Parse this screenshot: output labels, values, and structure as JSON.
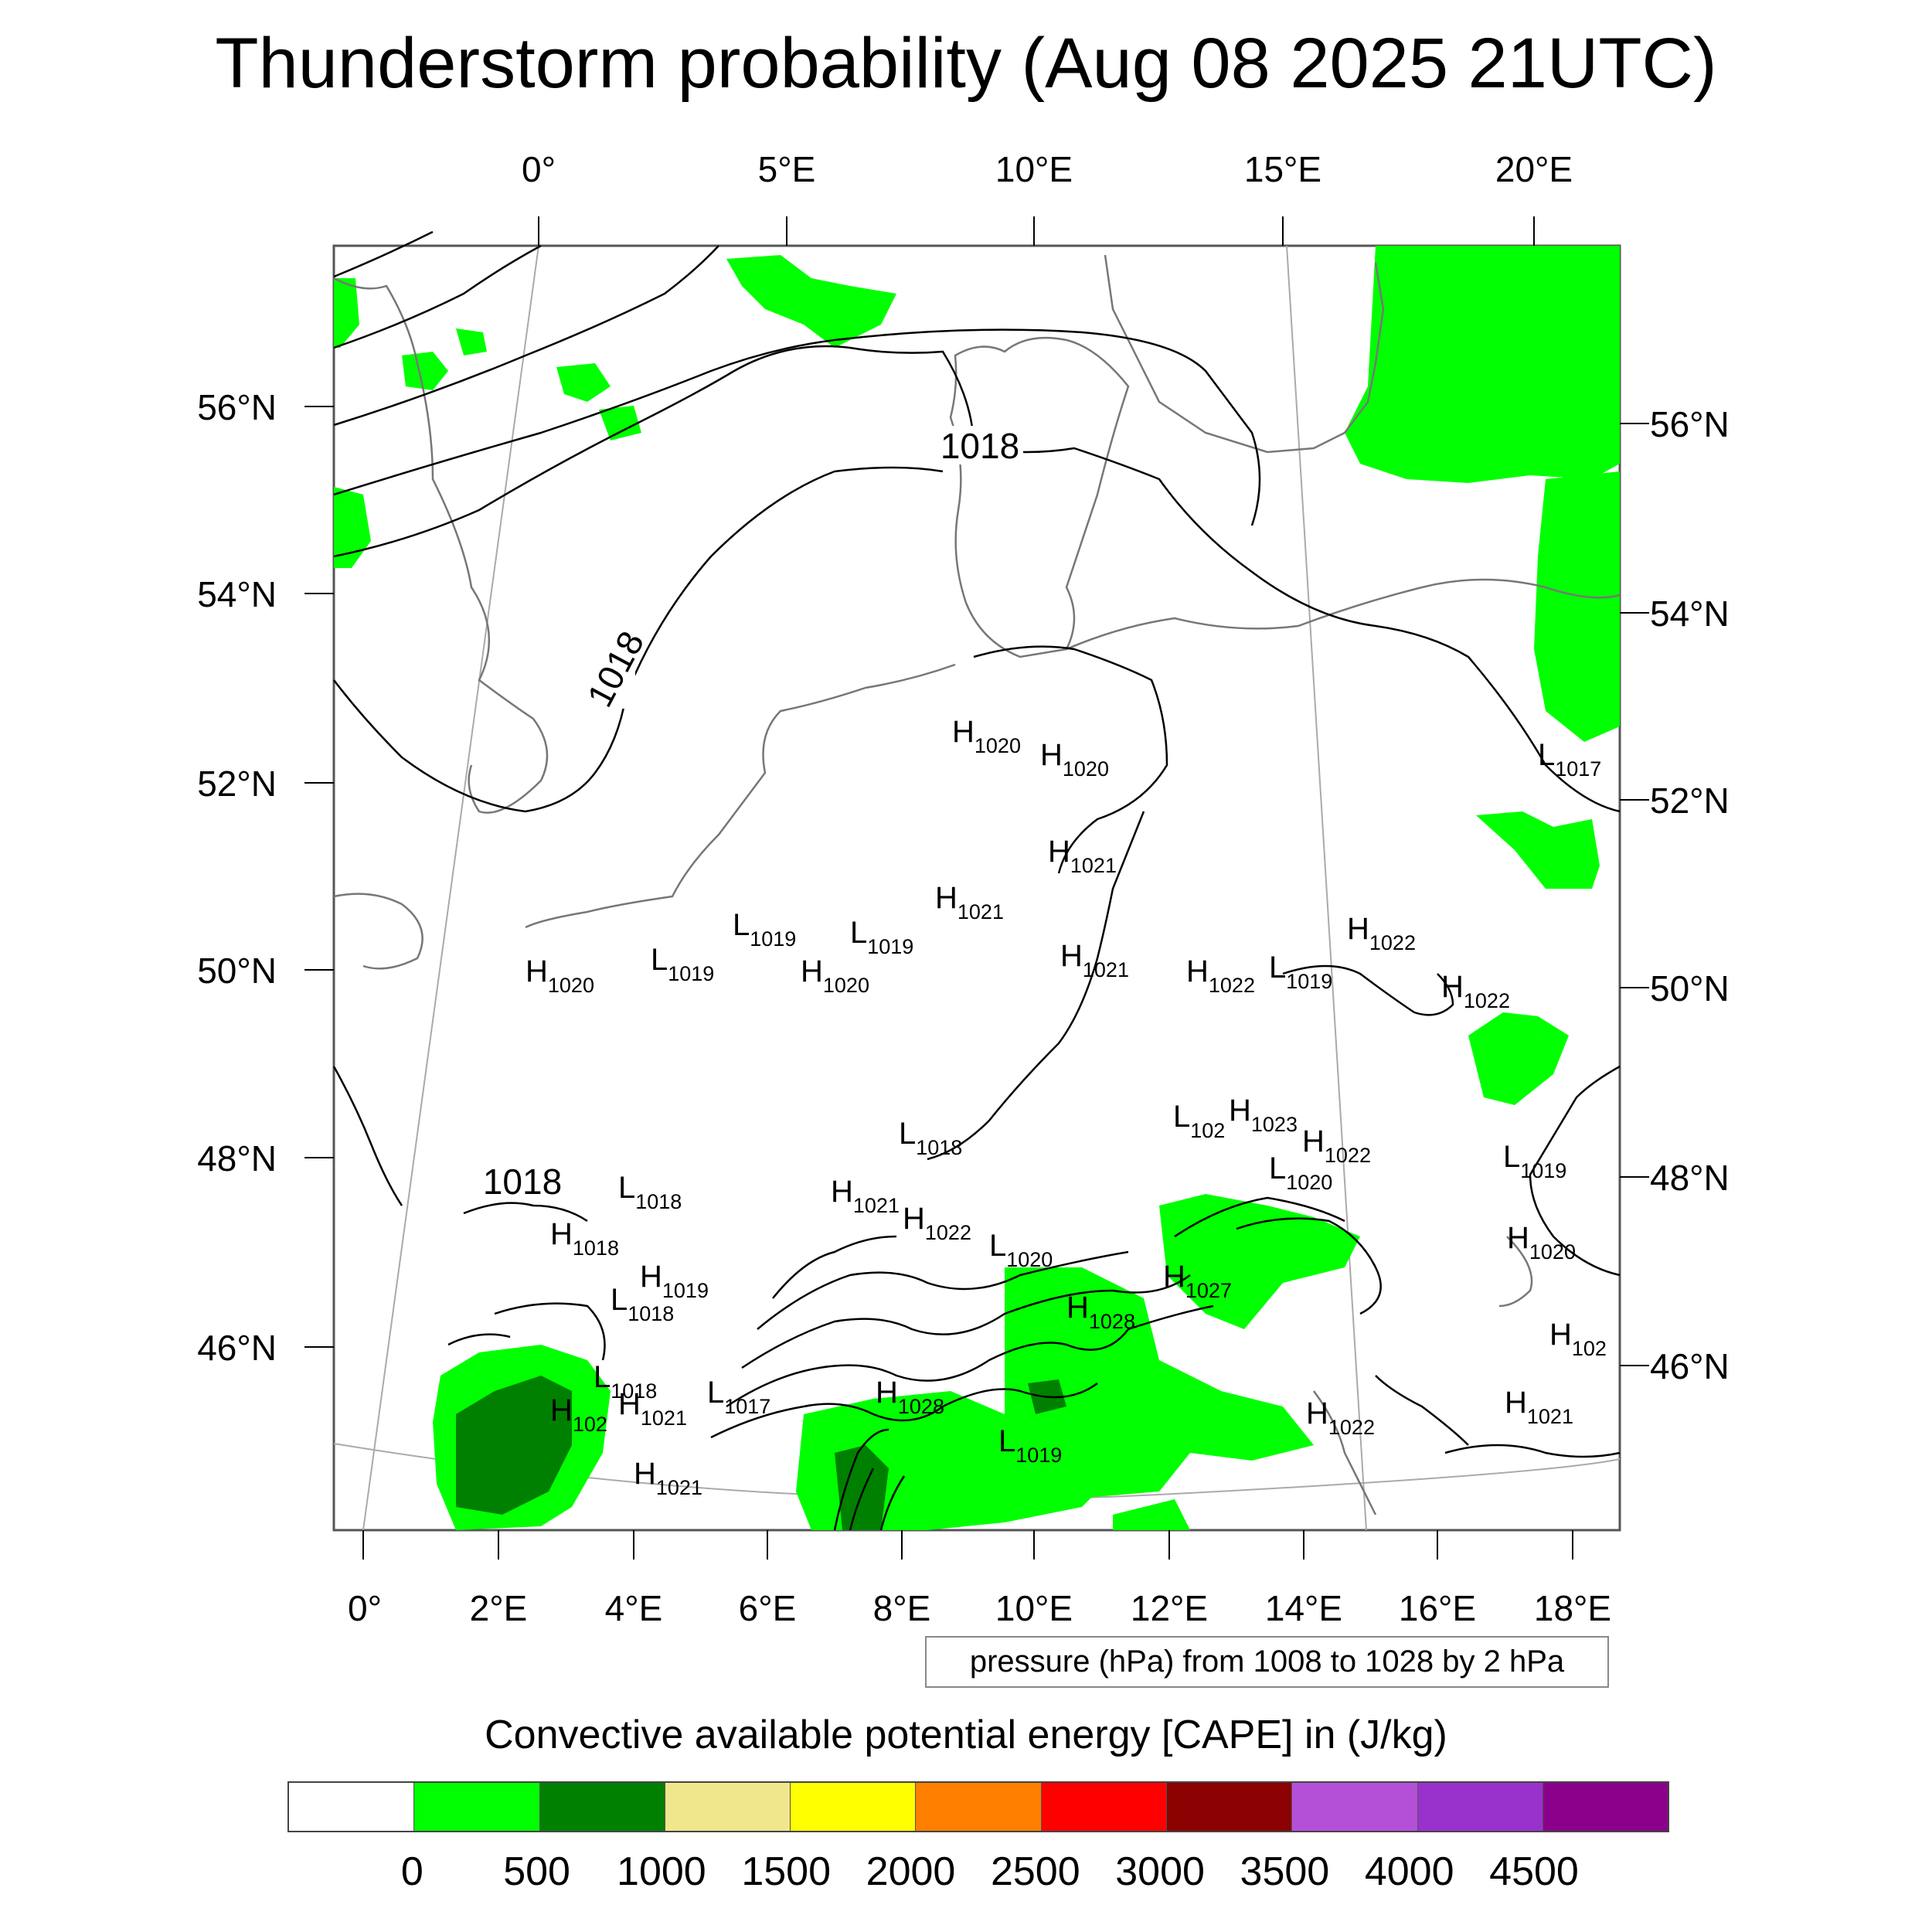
{
  "title": "Thunderstorm probability (Aug 08 2025 21UTC)",
  "top_lon_labels": [
    "0°",
    "5°E",
    "10°E",
    "15°E",
    "20°E"
  ],
  "bottom_lon_labels": [
    "0°",
    "2°E",
    "4°E",
    "6°E",
    "8°E",
    "10°E",
    "12°E",
    "14°E",
    "16°E",
    "18°E"
  ],
  "left_lat_labels": [
    "56°N",
    "54°N",
    "52°N",
    "50°N",
    "48°N",
    "46°N"
  ],
  "right_lat_labels": [
    "56°N",
    "54°N",
    "52°N",
    "50°N",
    "48°N",
    "46°N"
  ],
  "isobar_labels": [
    "1018",
    "1018",
    "1018"
  ],
  "pressure_systems": [
    {
      "type": "H",
      "value": "1020"
    },
    {
      "type": "H",
      "value": "1020"
    },
    {
      "type": "L",
      "value": "1017"
    },
    {
      "type": "H",
      "value": "1021"
    },
    {
      "type": "H",
      "value": "1021"
    },
    {
      "type": "L",
      "value": "1019"
    },
    {
      "type": "L",
      "value": "1019"
    },
    {
      "type": "L",
      "value": "1019"
    },
    {
      "type": "H",
      "value": "1020"
    },
    {
      "type": "H",
      "value": "1020"
    },
    {
      "type": "H",
      "value": "1021"
    },
    {
      "type": "H",
      "value": "1022"
    },
    {
      "type": "L",
      "value": "1019"
    },
    {
      "type": "H",
      "value": "1022"
    },
    {
      "type": "H",
      "value": "1022"
    },
    {
      "type": "L",
      "value": "102"
    },
    {
      "type": "H",
      "value": "1023"
    },
    {
      "type": "H",
      "value": "1022"
    },
    {
      "type": "L",
      "value": "1018"
    },
    {
      "type": "L",
      "value": "1020"
    },
    {
      "type": "L",
      "value": "1019"
    },
    {
      "type": "L",
      "value": "1018"
    },
    {
      "type": "H",
      "value": "1021"
    },
    {
      "type": "H",
      "value": "1022"
    },
    {
      "type": "H",
      "value": "1018"
    },
    {
      "type": "L",
      "value": "1020"
    },
    {
      "type": "H",
      "value": "1019"
    },
    {
      "type": "H",
      "value": "1020"
    },
    {
      "type": "H",
      "value": "1027"
    },
    {
      "type": "L",
      "value": "1018"
    },
    {
      "type": "H",
      "value": "1028"
    },
    {
      "type": "H",
      "value": "102"
    },
    {
      "type": "L",
      "value": "1018"
    },
    {
      "type": "H",
      "value": "102"
    },
    {
      "type": "H",
      "value": "1021"
    },
    {
      "type": "L",
      "value": "1017"
    },
    {
      "type": "H",
      "value": "1028"
    },
    {
      "type": "H",
      "value": "1021"
    },
    {
      "type": "H",
      "value": "1022"
    },
    {
      "type": "L",
      "value": "1019"
    },
    {
      "type": "H",
      "value": "1021"
    }
  ],
  "pressure_note": "pressure (hPa) from 1008 to 1028 by 2 hPa",
  "legend": {
    "title": "Convective available potential energy [CAPE] in (J/kg)",
    "colors": [
      "#ffffff",
      "#00ff00",
      "#008000",
      "#f0e68c",
      "#ffff00",
      "#ff8000",
      "#ff0000",
      "#8b0000",
      "#b450d8",
      "#9932cc",
      "#8b008b"
    ],
    "labels": [
      "0",
      "500",
      "1000",
      "1500",
      "2000",
      "2500",
      "3000",
      "3500",
      "4000",
      "4500"
    ]
  }
}
